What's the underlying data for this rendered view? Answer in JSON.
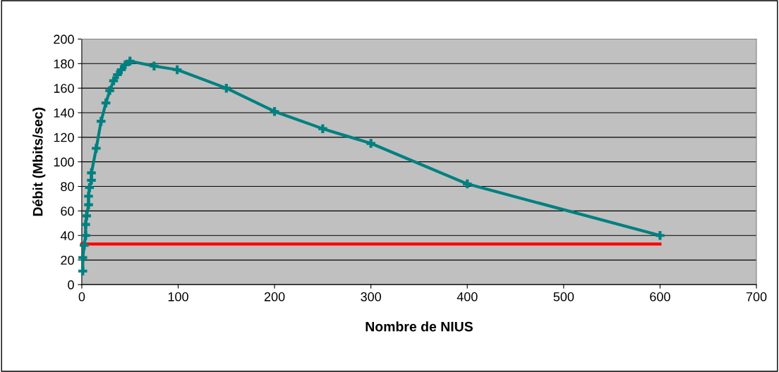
{
  "chart_data": {
    "type": "line",
    "xlabel": "Nombre de NIUS",
    "ylabel": "Débit (Mbits/sec)",
    "xlim": [
      0,
      700
    ],
    "xticks": [
      0,
      100,
      200,
      300,
      400,
      500,
      600,
      700
    ],
    "ylim": [
      0,
      200
    ],
    "yticks": [
      0,
      20,
      40,
      60,
      80,
      100,
      120,
      140,
      160,
      180,
      200
    ],
    "grid": "y",
    "series": [
      {
        "color": "#008080",
        "marker": "cross",
        "x": [
          1,
          1,
          2.5,
          4,
          4,
          5,
          7,
          7,
          8,
          10,
          10,
          15,
          20,
          25,
          29,
          33,
          37,
          41,
          45,
          50,
          75,
          99,
          150,
          200,
          250,
          300,
          400,
          600
        ],
        "values": [
          11,
          22,
          32,
          40,
          49,
          56,
          65,
          72,
          79,
          85,
          91,
          111,
          133,
          148,
          158,
          166,
          171,
          175,
          179,
          182,
          178,
          175,
          160,
          141,
          127,
          115,
          82,
          40
        ]
      },
      {
        "color": "#ff0000",
        "marker": "none",
        "x": [
          0,
          600
        ],
        "values": [
          33,
          33
        ]
      }
    ]
  }
}
